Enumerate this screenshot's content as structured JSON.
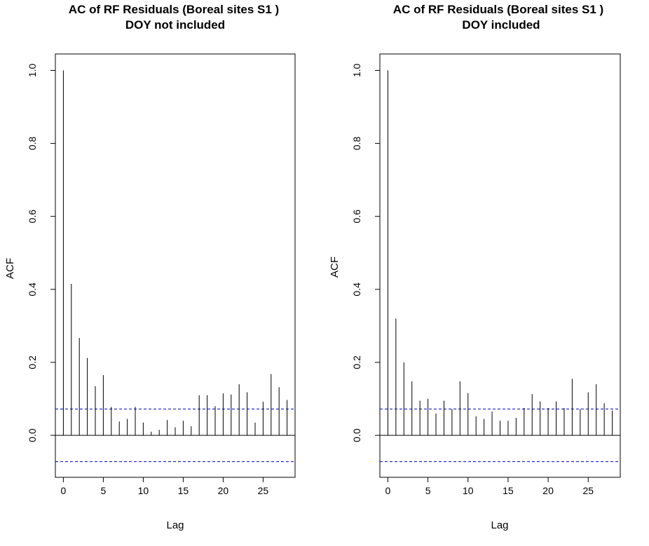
{
  "chart_data": [
    {
      "type": "bar",
      "subtype": "acf-stem",
      "title": "AC of RF Residuals (Boreal sites S1 )",
      "subtitle": "DOY not included",
      "xlabel": "Lag",
      "ylabel": "ACF",
      "x": [
        0,
        1,
        2,
        3,
        4,
        5,
        6,
        7,
        8,
        9,
        10,
        11,
        12,
        13,
        14,
        15,
        16,
        17,
        18,
        19,
        20,
        21,
        22,
        23,
        24,
        25,
        26,
        27,
        28
      ],
      "values": [
        1.0,
        0.415,
        0.267,
        0.212,
        0.135,
        0.165,
        0.078,
        0.038,
        0.045,
        0.078,
        0.035,
        0.01,
        0.015,
        0.042,
        0.022,
        0.04,
        0.025,
        0.11,
        0.11,
        0.08,
        0.115,
        0.112,
        0.14,
        0.118,
        0.035,
        0.092,
        0.168,
        0.132,
        0.097
      ],
      "xlim": [
        -1,
        29
      ],
      "ylim": [
        -0.115,
        1.045
      ],
      "xticks": [
        0,
        5,
        10,
        15,
        20,
        25
      ],
      "yticks": [
        0.0,
        0.2,
        0.4,
        0.6,
        0.8,
        1.0
      ],
      "ytick_labels": [
        "0.0",
        "0.2",
        "0.4",
        "0.6",
        "0.8",
        "1.0"
      ],
      "conf_bound": 0.072,
      "conf_color": "#0000cc",
      "grid": false
    },
    {
      "type": "bar",
      "subtype": "acf-stem",
      "title": "AC of RF Residuals (Boreal sites S1 )",
      "subtitle": "DOY included",
      "xlabel": "Lag",
      "ylabel": "ACF",
      "x": [
        0,
        1,
        2,
        3,
        4,
        5,
        6,
        7,
        8,
        9,
        10,
        11,
        12,
        13,
        14,
        15,
        16,
        17,
        18,
        19,
        20,
        21,
        22,
        23,
        24,
        25,
        26,
        27,
        28
      ],
      "values": [
        1.0,
        0.32,
        0.2,
        0.148,
        0.095,
        0.1,
        0.06,
        0.095,
        0.072,
        0.148,
        0.116,
        0.052,
        0.045,
        0.065,
        0.04,
        0.04,
        0.048,
        0.075,
        0.113,
        0.093,
        0.075,
        0.093,
        0.075,
        0.155,
        0.072,
        0.118,
        0.14,
        0.088,
        0.068
      ],
      "xlim": [
        -1,
        29
      ],
      "ylim": [
        -0.115,
        1.045
      ],
      "xticks": [
        0,
        5,
        10,
        15,
        20,
        25
      ],
      "yticks": [
        0.0,
        0.2,
        0.4,
        0.6,
        0.8,
        1.0
      ],
      "ytick_labels": [
        "0.0",
        "0.2",
        "0.4",
        "0.6",
        "0.8",
        "1.0"
      ],
      "conf_bound": 0.072,
      "conf_color": "#0000cc",
      "grid": false
    }
  ]
}
